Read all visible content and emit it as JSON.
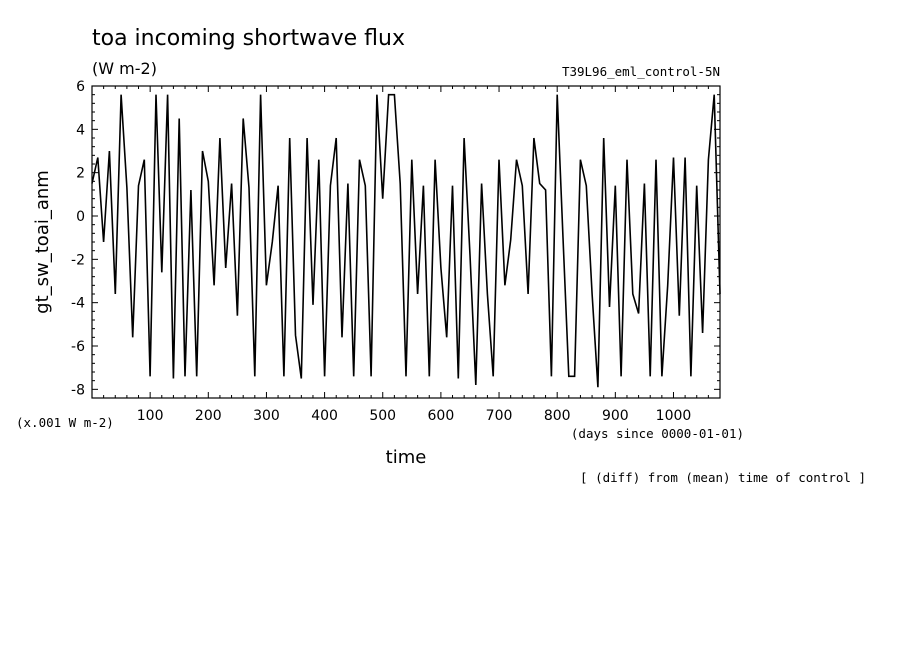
{
  "chart_data": {
    "type": "line",
    "title": "toa incoming shortwave flux",
    "units": "(W m-2)",
    "experiment": "T39L96_eml_control-5N",
    "ylabel": "gt_sw_toai_anm",
    "y_scale_note": "(x.001 W m-2)",
    "xlabel": "time",
    "x_units": "(days since 0000-01-01)",
    "footnote": "[ (diff) from (mean) time of control ]",
    "xlim": [
      0,
      1080
    ],
    "ylim": [
      -8.4,
      6
    ],
    "x_ticks": [
      "100",
      "200",
      "300",
      "400",
      "500",
      "600",
      "700",
      "800",
      "900",
      "1000"
    ],
    "y_ticks": [
      "6",
      "4",
      "2",
      "0",
      "-2",
      "-4",
      "-6",
      "-8"
    ],
    "grid": false,
    "series": [
      {
        "x": [
          0,
          10,
          20,
          30,
          40,
          50,
          60,
          70,
          80,
          90,
          100,
          110,
          120,
          130,
          140,
          150,
          160,
          170,
          180,
          190,
          200,
          210,
          220,
          230,
          240,
          250,
          260,
          270,
          280,
          290,
          300,
          310,
          320,
          330,
          340,
          350,
          360,
          370,
          380,
          390,
          400,
          410,
          420,
          430,
          440,
          450,
          460,
          470,
          480,
          490,
          500,
          510,
          520,
          530,
          540,
          550,
          560,
          570,
          580,
          590,
          600,
          610,
          620,
          630,
          640,
          650,
          660,
          670,
          680,
          690,
          700,
          710,
          720,
          730,
          740,
          750,
          760,
          770,
          780,
          790,
          800,
          810,
          820,
          830,
          840,
          850,
          860,
          870,
          880,
          890,
          900,
          910,
          920,
          930,
          940,
          950,
          960,
          970,
          980,
          990,
          1000,
          1010,
          1020,
          1030,
          1040,
          1050,
          1060,
          1070,
          1080
        ],
        "y": [
          1.5,
          2.7,
          -1.2,
          3,
          -3.6,
          5.6,
          1.3,
          -5.6,
          1.4,
          2.6,
          -7.4,
          5.6,
          -2.6,
          5.6,
          -7.5,
          4.5,
          -7.4,
          1.2,
          -7.4,
          3,
          1.6,
          -3.2,
          3.6,
          -2.4,
          1.5,
          -4.6,
          4.5,
          1.3,
          -7.4,
          5.6,
          -3.2,
          -1.2,
          1.4,
          -7.4,
          3.6,
          -5.5,
          -7.5,
          3.6,
          -4.1,
          2.6,
          -7.4,
          1.4,
          3.6,
          -5.6,
          1.5,
          -7.4,
          2.6,
          1.4,
          -7.4,
          5.6,
          0.8,
          5.6,
          5.6,
          1.5,
          -7.4,
          2.6,
          -3.6,
          1.4,
          -7.4,
          2.6,
          -2.4,
          -5.6,
          1.4,
          -7.5,
          3.6,
          -1.8,
          -7.8,
          1.5,
          -3.6,
          -7.4,
          2.6,
          -3.2,
          -1.1,
          2.6,
          1.4,
          -3.6,
          3.6,
          1.5,
          1.2,
          -7.4,
          5.6,
          -1,
          -7.4,
          -7.4,
          2.6,
          1.4,
          -3.6,
          -7.9,
          3.6,
          -4.2,
          1.4,
          -7.4,
          2.6,
          -3.6,
          -4.5,
          1.5,
          -7.4,
          2.6,
          -7.4,
          -3.2,
          2.7,
          -4.6,
          2.7,
          -7.4,
          1.4,
          -5.4,
          2.6,
          5.6,
          -3.6
        ]
      }
    ]
  }
}
